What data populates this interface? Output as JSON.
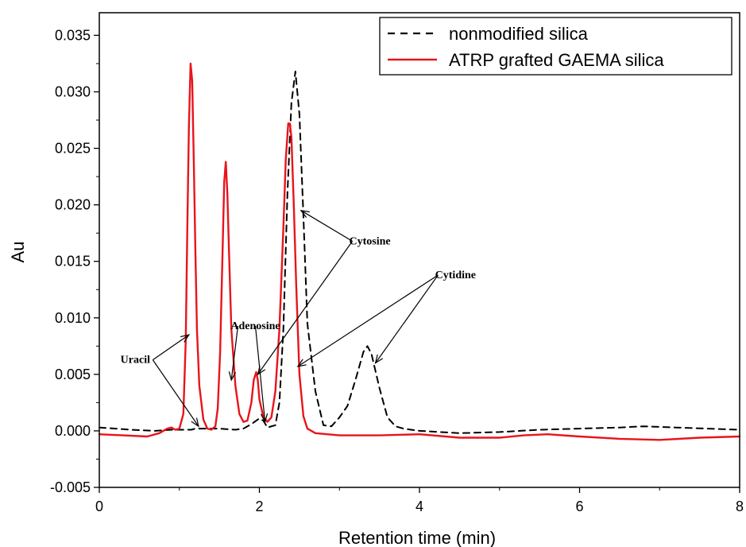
{
  "chart_data": {
    "type": "line",
    "xlabel": "Retention time (min)",
    "ylabel": "Au",
    "xlim": [
      0,
      8
    ],
    "ylim": [
      -0.005,
      0.037
    ],
    "x_ticks": [
      "0",
      "2",
      "4",
      "6",
      "8"
    ],
    "x_tick_values": [
      0,
      2,
      4,
      6,
      8
    ],
    "y_ticks": [
      "-0.005",
      "0.000",
      "0.005",
      "0.010",
      "0.015",
      "0.020",
      "0.025",
      "0.030",
      "0.035"
    ],
    "y_tick_values": [
      -0.005,
      0,
      0.005,
      0.01,
      0.015,
      0.02,
      0.025,
      0.03,
      0.035
    ],
    "grid": false,
    "legend_position": "top-right",
    "series": [
      {
        "name": "nonmodified silica",
        "color": "#000000",
        "style": "dashed",
        "x": [
          0,
          0.4,
          0.7,
          0.9,
          1.0,
          1.15,
          1.2,
          1.3,
          1.5,
          1.7,
          1.8,
          1.9,
          2.0,
          2.05,
          2.1,
          2.2,
          2.25,
          2.3,
          2.35,
          2.4,
          2.45,
          2.5,
          2.55,
          2.6,
          2.7,
          2.8,
          2.9,
          3.0,
          3.1,
          3.2,
          3.3,
          3.35,
          3.4,
          3.5,
          3.6,
          3.7,
          3.8,
          4.0,
          4.5,
          5.0,
          5.5,
          6.0,
          6.5,
          6.8,
          7.2,
          7.6,
          8.0
        ],
        "y": [
          0.0003,
          0.0001,
          0.0,
          0.0001,
          0.0001,
          0.0001,
          0.0002,
          0.0002,
          0.0002,
          0.0001,
          0.0002,
          0.0006,
          0.0011,
          0.0009,
          0.0003,
          0.0005,
          0.0025,
          0.009,
          0.021,
          0.029,
          0.0318,
          0.028,
          0.019,
          0.0095,
          0.0035,
          0.0005,
          0.0004,
          0.0012,
          0.0022,
          0.0045,
          0.007,
          0.0075,
          0.0068,
          0.0038,
          0.0012,
          0.0004,
          0.0002,
          0.0,
          -0.0002,
          -0.0001,
          0.0001,
          0.0002,
          0.0003,
          0.0004,
          0.0003,
          0.0002,
          0.0001
        ]
      },
      {
        "name": "ATRP grafted GAEMA silica",
        "color": "#e8141c",
        "style": "solid",
        "x": [
          0,
          0.3,
          0.6,
          0.75,
          0.85,
          0.9,
          0.95,
          1.0,
          1.05,
          1.08,
          1.1,
          1.12,
          1.14,
          1.16,
          1.18,
          1.2,
          1.22,
          1.25,
          1.3,
          1.35,
          1.4,
          1.45,
          1.48,
          1.51,
          1.54,
          1.56,
          1.58,
          1.6,
          1.62,
          1.65,
          1.7,
          1.75,
          1.8,
          1.85,
          1.9,
          1.93,
          1.96,
          1.98,
          2.0,
          2.05,
          2.1,
          2.15,
          2.2,
          2.25,
          2.3,
          2.33,
          2.36,
          2.38,
          2.4,
          2.43,
          2.46,
          2.5,
          2.55,
          2.6,
          2.7,
          3.0,
          3.5,
          4.0,
          4.5,
          5.0,
          5.3,
          5.6,
          6.0,
          6.5,
          7.0,
          7.5,
          8.0
        ],
        "y": [
          -0.0003,
          -0.0004,
          -0.0005,
          -0.0002,
          0.0002,
          0.0003,
          0.0001,
          0.0002,
          0.0015,
          0.008,
          0.018,
          0.027,
          0.0325,
          0.031,
          0.024,
          0.016,
          0.009,
          0.004,
          0.001,
          0.0002,
          0.0001,
          0.0004,
          0.002,
          0.007,
          0.016,
          0.022,
          0.0238,
          0.021,
          0.016,
          0.009,
          0.004,
          0.0015,
          0.0008,
          0.0009,
          0.0025,
          0.0045,
          0.0052,
          0.0045,
          0.0028,
          0.0012,
          0.0008,
          0.0012,
          0.0035,
          0.009,
          0.018,
          0.024,
          0.0272,
          0.0272,
          0.026,
          0.02,
          0.013,
          0.005,
          0.0013,
          0.0002,
          -0.0002,
          -0.0004,
          -0.0004,
          -0.0003,
          -0.0006,
          -0.0006,
          -0.0004,
          -0.0003,
          -0.0005,
          -0.0007,
          -0.0008,
          -0.0006,
          -0.0005
        ]
      }
    ],
    "annotations": [
      {
        "label": "Uracil",
        "at": [
          0.45,
          0.006
        ],
        "arrows_to": [
          [
            1.12,
            0.0085
          ],
          [
            1.24,
            0.0004
          ]
        ]
      },
      {
        "label": "Adenosine",
        "at": [
          1.95,
          0.009
        ],
        "arrows_to": [
          [
            1.65,
            0.0045
          ],
          [
            2.07,
            0.0008
          ]
        ]
      },
      {
        "label": "Cytosine",
        "at": [
          3.38,
          0.0165
        ],
        "arrows_to": [
          [
            2.52,
            0.0195
          ],
          [
            1.98,
            0.005
          ]
        ]
      },
      {
        "label": "Cytidine",
        "at": [
          4.45,
          0.0135
        ],
        "arrows_to": [
          [
            2.48,
            0.0057
          ],
          [
            3.45,
            0.006
          ]
        ]
      }
    ]
  }
}
